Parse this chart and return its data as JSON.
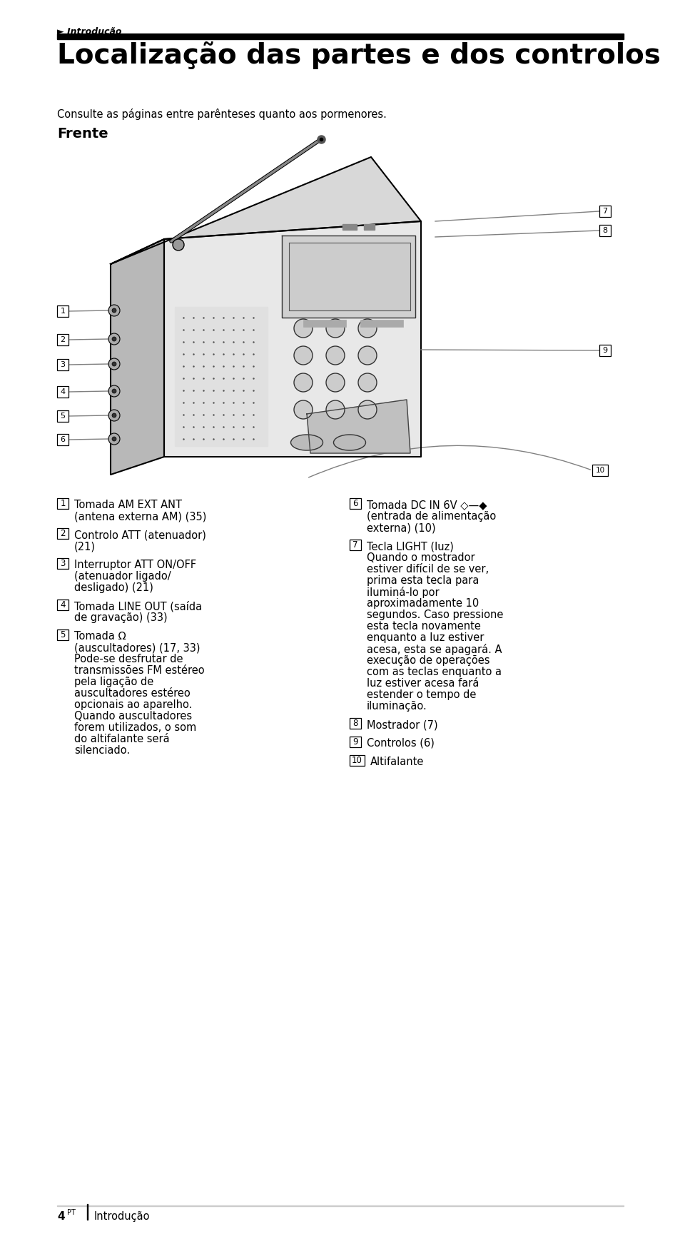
{
  "page_bg": "#ffffff",
  "top_label": "► Introdução",
  "title": "Localização das partes e dos controlos",
  "subtitle": "Consulte as páginas entre parênteses quanto aos pormenores.",
  "section_frente": "Frente",
  "items_left": [
    {
      "num": "1",
      "text": "Tomada AM EXT ANT\n(antena externa AM) (35)"
    },
    {
      "num": "2",
      "text": "Controlo ATT (atenuador)\n(21)"
    },
    {
      "num": "3",
      "text": "Interruptor ATT ON/OFF\n(atenuador ligado/\ndesligado) (21)"
    },
    {
      "num": "4",
      "text": "Tomada LINE OUT (saída\nde gravação) (33)"
    },
    {
      "num": "5",
      "text": "Tomada Ω\n(auscultadores) (17, 33)\nPode-se desfrutar de\ntransmissões FM estéreo\npela ligação de\nauscultadores estéreo\nopcionais ao aparelho.\nQuando auscultadores\nforem utilizados, o som\ndo altifalante será\nsilenciado."
    }
  ],
  "items_right": [
    {
      "num": "6",
      "text": "Tomada DC IN 6V ◇—◆\n(entrada de alimentação\nexterna) (10)"
    },
    {
      "num": "7",
      "text": "Tecla LIGHT (luz)\nQuando o mostrador\nestiver difícil de se ver,\nprima esta tecla para\niluminá-lo por\naproximadamente 10\nsegundos. Caso pressione\nesta tecla novamente\nenquanto a luz estiver\nacesa, esta se apagará. A\nexecução de operações\ncom as teclas enquanto a\nluz estiver acesa fará\nestender o tempo de\niluminação."
    },
    {
      "num": "8",
      "text": "Mostrador (7)"
    },
    {
      "num": "9",
      "text": "Controlos (6)"
    },
    {
      "num": "10",
      "text": "Altifalante"
    }
  ],
  "footer_num": "4",
  "footer_sup": "PT",
  "footer_text": "Introdução",
  "radio_color": "#c8c8c8",
  "radio_edge": "#000000",
  "label_line_color": "#808080"
}
